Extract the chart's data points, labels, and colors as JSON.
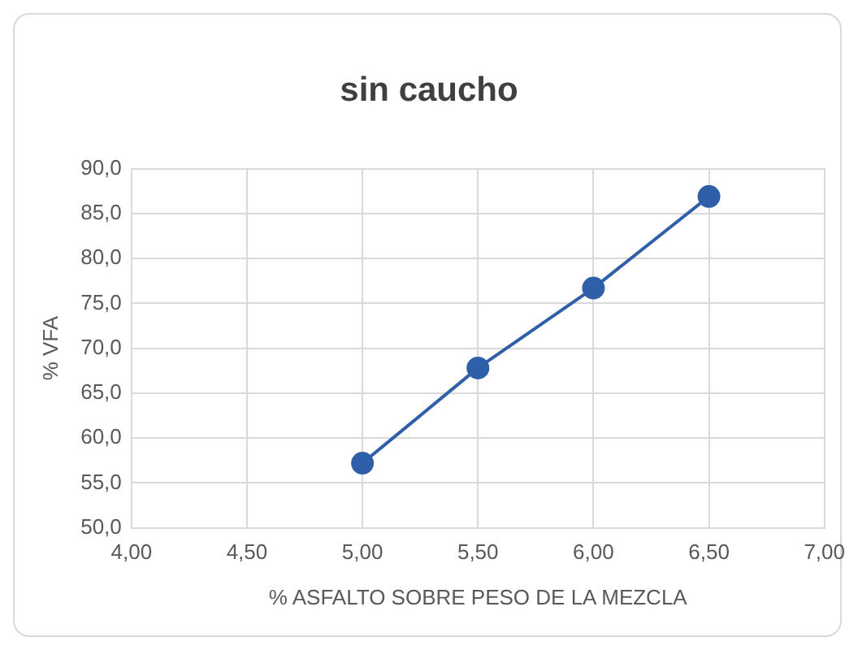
{
  "chart_data": {
    "type": "scatter",
    "title": "sin caucho",
    "xlabel": "% ASFALTO SOBRE PESO DE LA MEZCLA",
    "ylabel": "% VFA",
    "x": [
      5.0,
      5.5,
      6.0,
      6.5
    ],
    "series": [
      {
        "type": "line",
        "color": "#2e5fa8",
        "values": [
          57.2,
          67.8,
          76.7,
          86.9
        ]
      }
    ],
    "xlim": [
      4,
      7
    ],
    "xticks": [
      {
        "value": 4,
        "label": "4,00"
      },
      {
        "value": 4.5,
        "label": "4,50"
      },
      {
        "value": 5,
        "label": "5,00"
      },
      {
        "value": 5.5,
        "label": "5,50"
      },
      {
        "value": 6,
        "label": "6,00"
      },
      {
        "value": 6.5,
        "label": "6,50"
      },
      {
        "value": 7,
        "label": "7,00"
      }
    ],
    "ylim": [
      50,
      90
    ],
    "yticks": [
      {
        "value": 50,
        "label": "50,0"
      },
      {
        "value": 55,
        "label": "55,0"
      },
      {
        "value": 60,
        "label": "60,0"
      },
      {
        "value": 65,
        "label": "65,0"
      },
      {
        "value": 70,
        "label": "70,0"
      },
      {
        "value": 75,
        "label": "75,0"
      },
      {
        "value": 80,
        "label": "80,0"
      },
      {
        "value": 85,
        "label": "85,0"
      },
      {
        "value": 90,
        "label": "90,0"
      }
    ],
    "grid": true,
    "legend": false,
    "marker": "circle",
    "line_style": "solid"
  }
}
